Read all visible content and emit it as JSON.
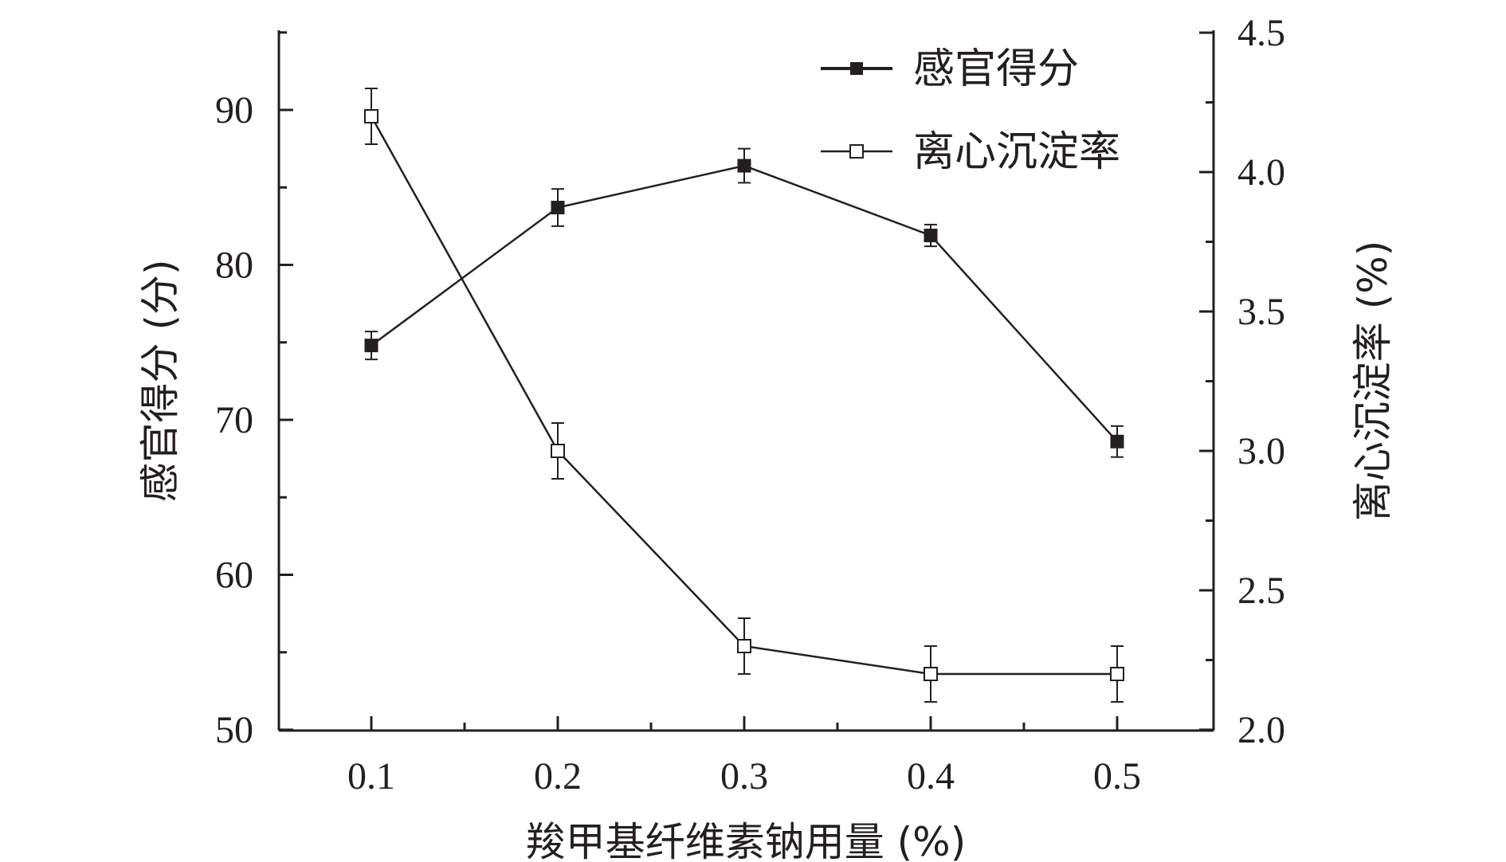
{
  "chart_data": {
    "type": "line",
    "x": [
      0.1,
      0.2,
      0.3,
      0.4,
      0.5
    ],
    "x_tick_labels": [
      "0.1",
      "0.2",
      "0.3",
      "0.4",
      "0.5"
    ],
    "xlabel": "羧甲基纤维素钠用量 (%)",
    "ylabel_left": "感官得分 (分)",
    "ylabel_right": "离心沉淀率 (%)",
    "ylim_left": [
      50,
      95
    ],
    "ylim_right": [
      2.0,
      4.5
    ],
    "y_left_ticks": [
      "50",
      "60",
      "70",
      "80",
      "90"
    ],
    "y_right_ticks": [
      "2.0",
      "2.5",
      "3.0",
      "3.5",
      "4.0",
      "4.5"
    ],
    "grid": false,
    "legend_position": "top-right",
    "series": [
      {
        "name": "感官得分",
        "axis": "left",
        "marker": "filled-square",
        "values": [
          74.8,
          83.7,
          86.4,
          81.9,
          68.6
        ],
        "errors": [
          0.9,
          1.2,
          1.1,
          0.7,
          1.0
        ]
      },
      {
        "name": "离心沉淀率",
        "axis": "right",
        "marker": "open-square",
        "values": [
          4.2,
          3.0,
          2.3,
          2.2,
          2.2
        ],
        "errors": [
          0.1,
          0.1,
          0.1,
          0.1,
          0.1
        ]
      }
    ]
  }
}
